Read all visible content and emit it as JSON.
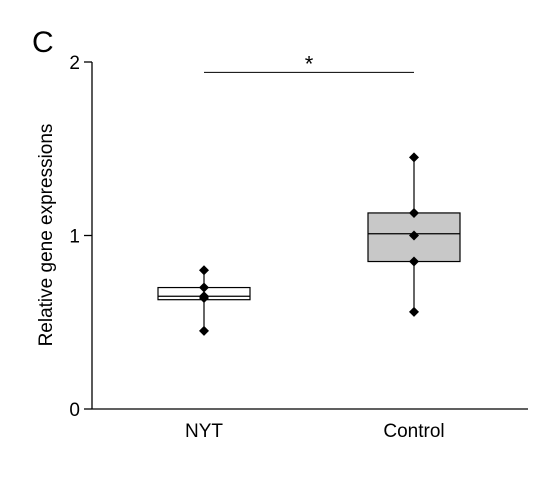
{
  "panel_label": "C",
  "chart_data": {
    "type": "box",
    "ylabel": "Relative gene expressions",
    "ylim": [
      0,
      2
    ],
    "yticks": [
      0,
      1,
      2
    ],
    "categories": [
      "NYT",
      "Control"
    ],
    "boxes": [
      {
        "category": "NYT",
        "fill": "#ffffff",
        "whisker_low": 0.45,
        "q1": 0.63,
        "median": 0.65,
        "q3": 0.7,
        "whisker_high": 0.8,
        "points": [
          0.45,
          0.64,
          0.65,
          0.7,
          0.8
        ]
      },
      {
        "category": "Control",
        "fill": "#c8c8c8",
        "whisker_low": 0.56,
        "q1": 0.85,
        "median": 1.01,
        "q3": 1.13,
        "whisker_high": 1.45,
        "points": [
          0.56,
          0.85,
          1.0,
          1.13,
          1.45
        ]
      }
    ],
    "significance": {
      "between": [
        "NYT",
        "Control"
      ],
      "label": "*",
      "y": 1.94
    }
  }
}
